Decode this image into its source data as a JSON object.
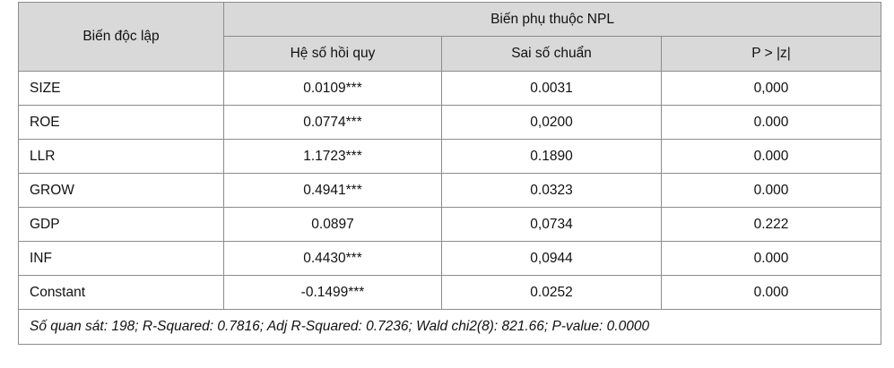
{
  "table": {
    "header_variable": "Biến độc lập",
    "header_group": "Biến phụ thuộc NPL",
    "columns": [
      "Hệ số hồi quy",
      "Sai số chuẩn",
      "P > |z|"
    ],
    "rows": [
      {
        "variable": "SIZE",
        "coef": "0.0109***",
        "se": "0.0031",
        "p": "0,000"
      },
      {
        "variable": "ROE",
        "coef": "0.0774***",
        "se": "0,0200",
        "p": "0.000"
      },
      {
        "variable": "LLR",
        "coef": "1.1723***",
        "se": "0.1890",
        "p": "0.000"
      },
      {
        "variable": "GROW",
        "coef": "0.4941***",
        "se": "0.0323",
        "p": "0.000"
      },
      {
        "variable": "GDP",
        "coef": "0.0897",
        "se": "0,0734",
        "p": "0.222"
      },
      {
        "variable": "INF",
        "coef": "0.4430***",
        "se": "0,0944",
        "p": "0.000"
      },
      {
        "variable": "Constant",
        "coef": "-0.1499***",
        "se": "0.0252",
        "p": "0.000"
      }
    ],
    "note": "Số quan sát: 198; R-Squared: 0.7816; Adj R-Squared: 0.7236; Wald chi2(8): 821.66; P-value: 0.0000"
  },
  "colors": {
    "header_bg": "#d9d9d9",
    "border": "#8c8c8c",
    "text": "#111111"
  }
}
